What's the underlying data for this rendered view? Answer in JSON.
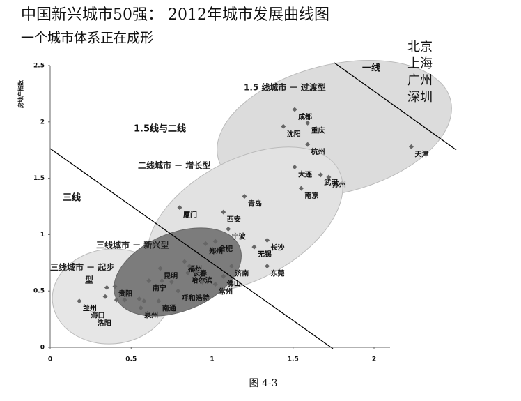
{
  "chart_data": {
    "type": "scatter",
    "title": "中国新兴城市50强： 2012年城市发展曲线图",
    "subtitle": "一个城市体系正在成形",
    "y_label": "房地产指数",
    "caption": "图 4-3",
    "xlim": [
      0,
      2.2
    ],
    "ylim": [
      0,
      2.5
    ],
    "xticks": [
      0,
      0.5,
      1,
      1.5,
      2
    ],
    "yticks": [
      0,
      0.5,
      1,
      1.5,
      2,
      2.5
    ],
    "color": "#666666",
    "x": [
      1.51,
      1.59,
      1.44,
      1.59,
      2.23,
      1.51,
      1.67,
      1.72,
      1.55,
      1.2,
      0.8,
      1.07,
      1.1,
      1.02,
      1.34,
      0.96,
      1.26,
      0.83,
      0.68,
      0.86,
      1.12,
      1.34,
      0.85,
      1.07,
      0.61,
      1.02,
      0.4,
      0.79,
      0.18,
      0.67,
      0.23,
      0.56,
      0.27,
      0.35,
      0.34,
      0.41,
      0.46,
      0.55,
      0.58,
      0.69,
      0.75,
      0.9,
      0.94
    ],
    "values": [
      2.11,
      1.99,
      1.96,
      1.8,
      1.78,
      1.6,
      1.53,
      1.51,
      1.41,
      1.34,
      1.24,
      1.2,
      1.05,
      0.94,
      0.95,
      0.92,
      0.89,
      0.76,
      0.7,
      0.72,
      0.72,
      0.72,
      0.66,
      0.63,
      0.59,
      0.56,
      0.54,
      0.5,
      0.41,
      0.41,
      0.35,
      0.35,
      0.28,
      0.53,
      0.45,
      0.42,
      0.42,
      0.43,
      0.41,
      0.59,
      0.58,
      0.67,
      0.58
    ],
    "labels": [
      "成都",
      "重庆",
      "沈阳",
      "杭州",
      "天津",
      "大连",
      "武汉",
      "苏州",
      "南京",
      "青岛",
      "厦门",
      "西安",
      "宁波",
      "合肥",
      "长沙",
      "郑州",
      "无锡",
      "福州",
      "昆明",
      "长春",
      "济南",
      "东莞",
      "哈尔滨",
      "佛山",
      "南宁",
      "常州",
      "贵阳",
      "呼和浩特",
      "兰州",
      "南通",
      "海口",
      "泉州",
      "洛阳",
      null,
      null,
      null,
      null,
      null,
      null,
      null,
      null,
      null,
      null
    ],
    "regions": [
      "1.5 线城市 － 过渡型",
      "二线城市 － 增长型",
      "三线城市 － 新兴型",
      "三线城市 － 起步",
      "型"
    ],
    "zones": [
      "一线",
      "1.5线与二线",
      "三线"
    ],
    "tier1_cities": [
      "北京",
      "上海",
      "广州",
      "深圳"
    ]
  }
}
